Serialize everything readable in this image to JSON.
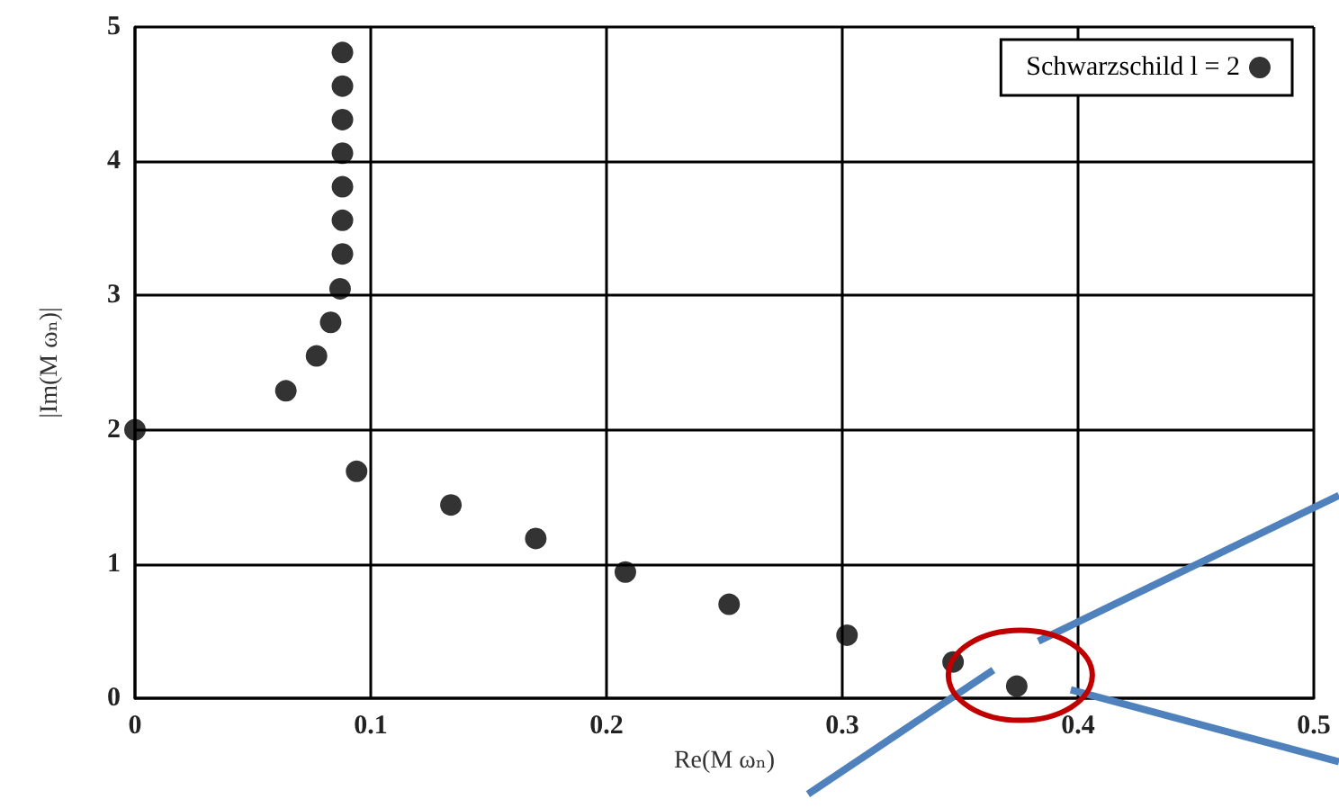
{
  "chart_data": {
    "type": "scatter",
    "xlabel": "Re(M ωₙ)",
    "ylabel": "|Im(M ωₙ)|",
    "x": [
      0.088,
      0.088,
      0.088,
      0.088,
      0.088,
      0.088,
      0.088,
      0.087,
      0.083,
      0.077,
      0.064,
      0,
      0.094,
      0.134,
      0.17,
      0.208,
      0.252,
      0.302,
      0.347,
      0.374
    ],
    "series": [
      {
        "name": "Schwarzschild l = 2",
        "color": "#000000",
        "values": [
          4.81,
          4.56,
          4.31,
          4.06,
          3.81,
          3.56,
          3.31,
          3.05,
          2.8,
          2.55,
          2.29,
          2.0,
          1.69,
          1.44,
          1.19,
          0.94,
          0.7,
          0.47,
          0.27,
          0.09
        ]
      }
    ],
    "xlim": [
      0,
      0.5
    ],
    "ylim": [
      0,
      5
    ],
    "xticks": [
      0,
      0.1,
      0.2,
      0.3,
      0.4,
      0.5
    ],
    "yticks": [
      0,
      1,
      2,
      3,
      4,
      5
    ],
    "grid": true,
    "legend": "top right",
    "marker": "circle"
  }
}
